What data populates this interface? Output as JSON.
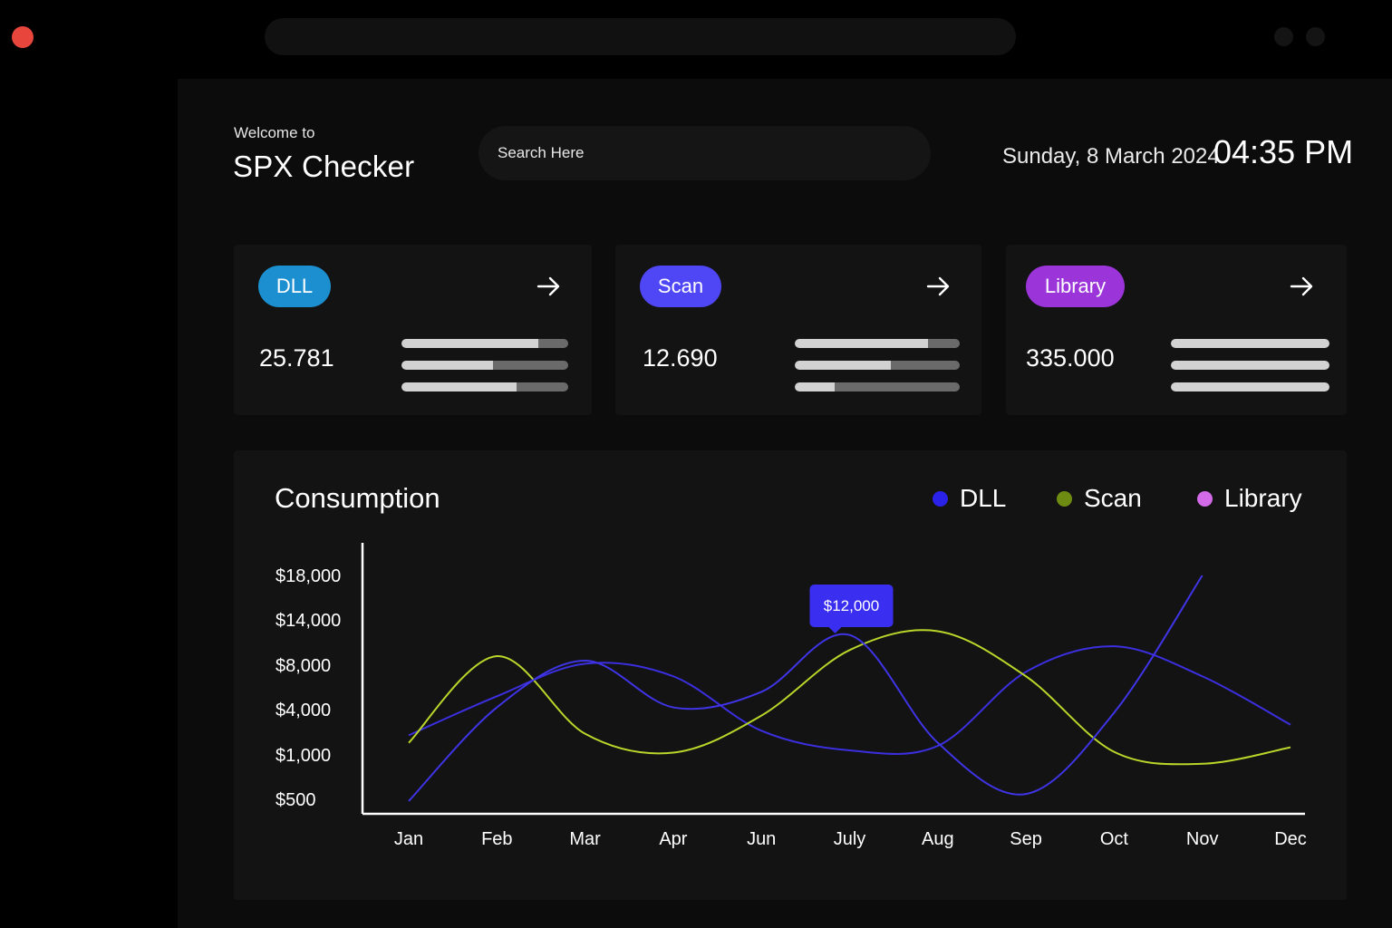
{
  "window": {
    "close_color": "#e8453c"
  },
  "header": {
    "welcome": "Welcome to",
    "title": "SPX Checker",
    "search_placeholder": "Search Here",
    "date": "Sunday, 8 March 2024",
    "time": "04:35 PM"
  },
  "cards": [
    {
      "label": "DLL",
      "value": "25.781",
      "color": "#1c8fd0",
      "arrow_icon": "arrow-right-icon",
      "bars": [
        0.82,
        0.55,
        0.69
      ]
    },
    {
      "label": "Scan",
      "value": "12.690",
      "color": "#4f46f5",
      "arrow_icon": "arrow-right-icon",
      "bars": [
        0.81,
        0.58,
        0.24
      ]
    },
    {
      "label": "Library",
      "value": "335.000",
      "color": "#9b35d9",
      "arrow_icon": "arrow-right-icon",
      "bars": [
        1.0,
        1.0,
        1.0
      ]
    }
  ],
  "chart": {
    "title": "Consumption",
    "legend": [
      {
        "label": "DLL",
        "color": "#2a22e8"
      },
      {
        "label": "Scan",
        "color": "#6f8c12"
      },
      {
        "label": "Library",
        "color": "#d36be8"
      }
    ],
    "tooltip": "$12,000"
  },
  "chart_data": {
    "type": "line",
    "categories": [
      "Jan",
      "Feb",
      "Mar",
      "Apr",
      "Jun",
      "July",
      "Aug",
      "Sep",
      "Oct",
      "Nov",
      "Dec"
    ],
    "y_ticks": [
      "$18,000",
      "$14,000",
      "$8,000",
      "$4,000",
      "$1,000",
      "$500"
    ],
    "y_tick_values": [
      18000,
      14000,
      8000,
      4000,
      1000,
      500
    ],
    "y_scale": "categorical-ticks",
    "series": [
      {
        "name": "DLL",
        "color": "#3b2fe0",
        "values": [
          2300,
          5200,
          8200,
          7000,
          2600,
          1300,
          1600,
          7400,
          10500,
          7000,
          3000
        ]
      },
      {
        "name": "Scan",
        "color": "#b9d62a",
        "values": [
          1800,
          9200,
          2400,
          1150,
          3600,
          10000,
          12500,
          7000,
          1200,
          900,
          1500
        ]
      },
      {
        "name": "",
        "color": "#3f34e6",
        "values": [
          450,
          4200,
          8600,
          4200,
          5600,
          12000,
          1800,
          560,
          3800,
          18000,
          null
        ]
      }
    ],
    "annotation": {
      "text": "$12,000",
      "category": "July"
    },
    "grid": false,
    "legend_position": "top-right"
  }
}
